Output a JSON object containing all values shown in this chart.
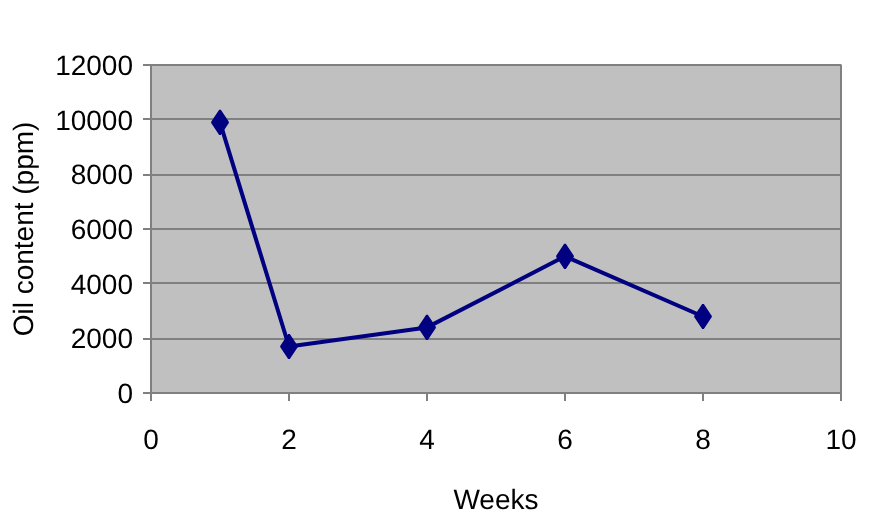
{
  "chart_data": {
    "type": "line",
    "xlabel": "Weeks",
    "ylabel": "Oil content (ppm)",
    "x": [
      1,
      2,
      4,
      6,
      8
    ],
    "series": [
      {
        "color": "#000080",
        "values": [
          9900,
          1700,
          2400,
          5000,
          2800
        ]
      }
    ],
    "xlim": [
      0,
      10
    ],
    "xticks": [
      0,
      2,
      4,
      6,
      8,
      10
    ],
    "ylim": [
      0,
      12000
    ],
    "yticks": [
      0,
      2000,
      4000,
      6000,
      8000,
      10000,
      12000
    ],
    "grid": "y",
    "marker": "diamond",
    "line_style": "solid"
  }
}
